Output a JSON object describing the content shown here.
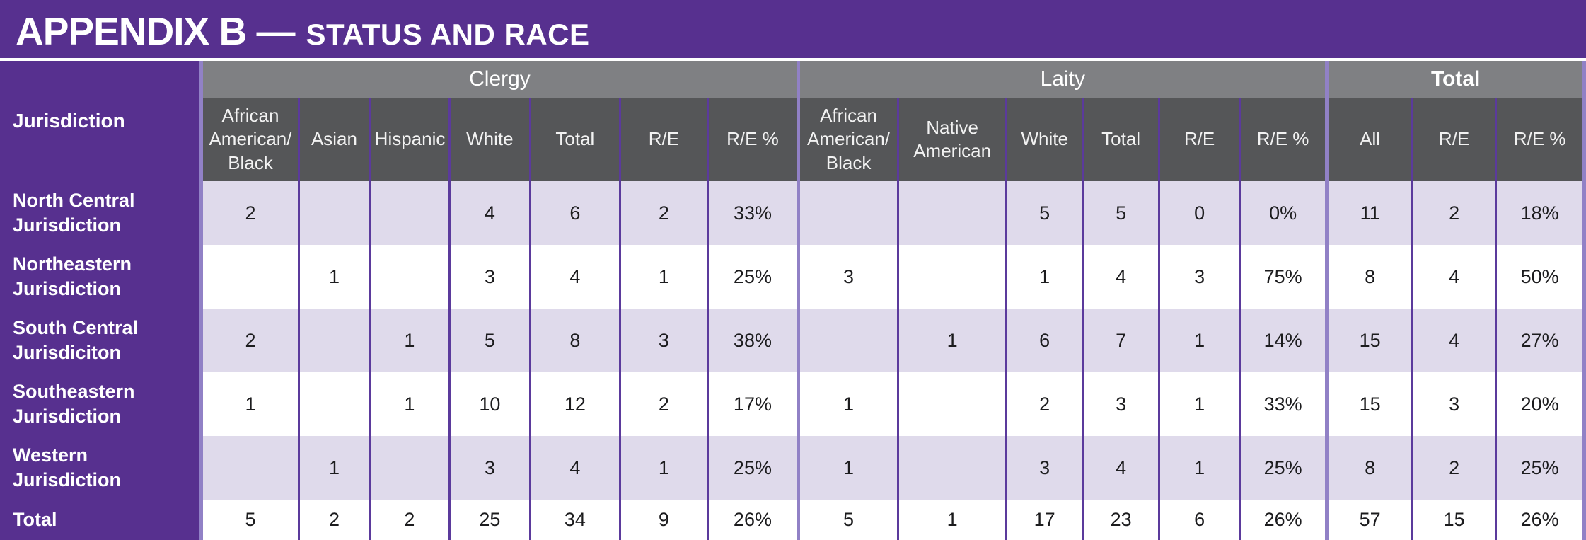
{
  "title": {
    "main": "APPENDIX B —",
    "subtitle": "STATUS AND RACE"
  },
  "colors": {
    "purple": "#57308f",
    "borderLight": "#9181c6",
    "borderDark": "#5b3a9c",
    "bandGray": "#7f8083",
    "headerGray": "#555658",
    "lavender": "#dfdaeb",
    "ink": "#1c1c1e"
  },
  "table": {
    "row_header_label": "Jurisdiction",
    "groups": [
      {
        "label": "Clergy",
        "columns": [
          "African American/ Black",
          "Asian",
          "Hispanic",
          "White",
          "Total",
          "R/E",
          "R/E %"
        ]
      },
      {
        "label": "Laity",
        "columns": [
          "African American/ Black",
          "Native American",
          "White",
          "Total",
          "R/E",
          "R/E %"
        ]
      },
      {
        "label": "Total",
        "columns": [
          "All",
          "R/E",
          "R/E %"
        ]
      }
    ],
    "rows": [
      {
        "label": "North Central Jurisdiction",
        "clergy": [
          "2",
          "",
          "",
          "4",
          "6",
          "2",
          "33%"
        ],
        "laity": [
          "",
          "",
          "5",
          "5",
          "0",
          "0%"
        ],
        "total": [
          "11",
          "2",
          "18%"
        ]
      },
      {
        "label": "Northeastern Jurisdiction",
        "clergy": [
          "",
          "1",
          "",
          "3",
          "4",
          "1",
          "25%"
        ],
        "laity": [
          "3",
          "",
          "1",
          "4",
          "3",
          "75%"
        ],
        "total": [
          "8",
          "4",
          "50%"
        ]
      },
      {
        "label": "South Central Jurisdiciton",
        "clergy": [
          "2",
          "",
          "1",
          "5",
          "8",
          "3",
          "38%"
        ],
        "laity": [
          "",
          "1",
          "6",
          "7",
          "1",
          "14%"
        ],
        "total": [
          "15",
          "4",
          "27%"
        ]
      },
      {
        "label": "Southeastern Jurisdiction",
        "clergy": [
          "1",
          "",
          "1",
          "10",
          "12",
          "2",
          "17%"
        ],
        "laity": [
          "1",
          "",
          "2",
          "3",
          "1",
          "33%"
        ],
        "total": [
          "15",
          "3",
          "20%"
        ]
      },
      {
        "label": "Western Jurisdiction",
        "clergy": [
          "",
          "1",
          "",
          "3",
          "4",
          "1",
          "25%"
        ],
        "laity": [
          "1",
          "",
          "3",
          "4",
          "1",
          "25%"
        ],
        "total": [
          "8",
          "2",
          "25%"
        ]
      },
      {
        "label": "Total",
        "clergy": [
          "5",
          "2",
          "2",
          "25",
          "34",
          "9",
          "26%"
        ],
        "laity": [
          "5",
          "1",
          "17",
          "23",
          "6",
          "26%"
        ],
        "total": [
          "57",
          "15",
          "26%"
        ]
      }
    ]
  }
}
